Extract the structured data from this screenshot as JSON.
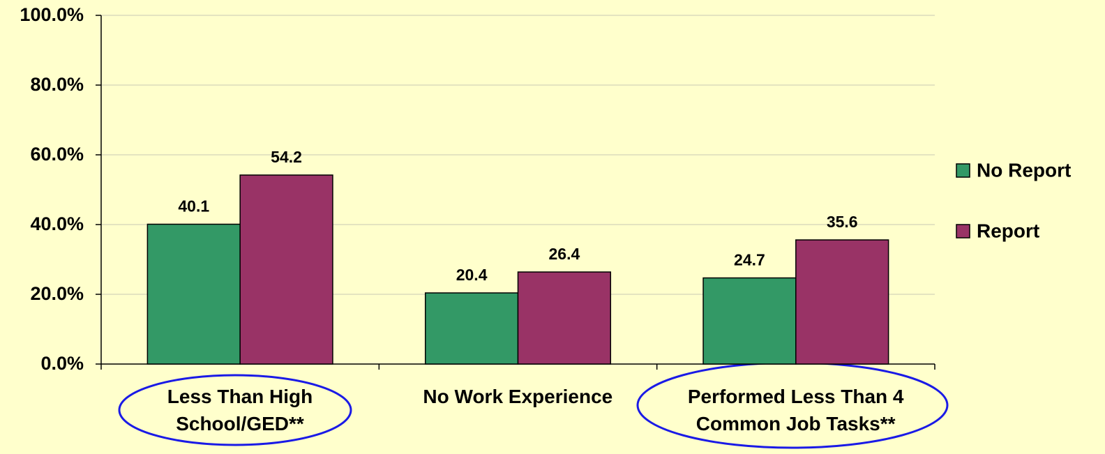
{
  "chart_data": {
    "type": "bar",
    "categories": [
      "Less Than High\nSchool/GED**",
      "No Work Experience",
      "Performed Less Than 4\nCommon Job Tasks**"
    ],
    "series": [
      {
        "name": "No Report",
        "color": "#339966",
        "values": [
          40.1,
          20.4,
          24.7
        ]
      },
      {
        "name": "Report",
        "color": "#993366",
        "values": [
          54.2,
          26.4,
          35.6
        ]
      }
    ],
    "ylim": [
      0,
      100
    ],
    "yticks": [
      {
        "value": 0,
        "label": "0.0%"
      },
      {
        "value": 20,
        "label": "20.0%"
      },
      {
        "value": 40,
        "label": "40.0%"
      },
      {
        "value": 60,
        "label": "60.0%"
      },
      {
        "value": 80,
        "label": "80.0%"
      },
      {
        "value": 100,
        "label": "100.0%"
      }
    ],
    "grid": true,
    "legend": "right"
  }
}
